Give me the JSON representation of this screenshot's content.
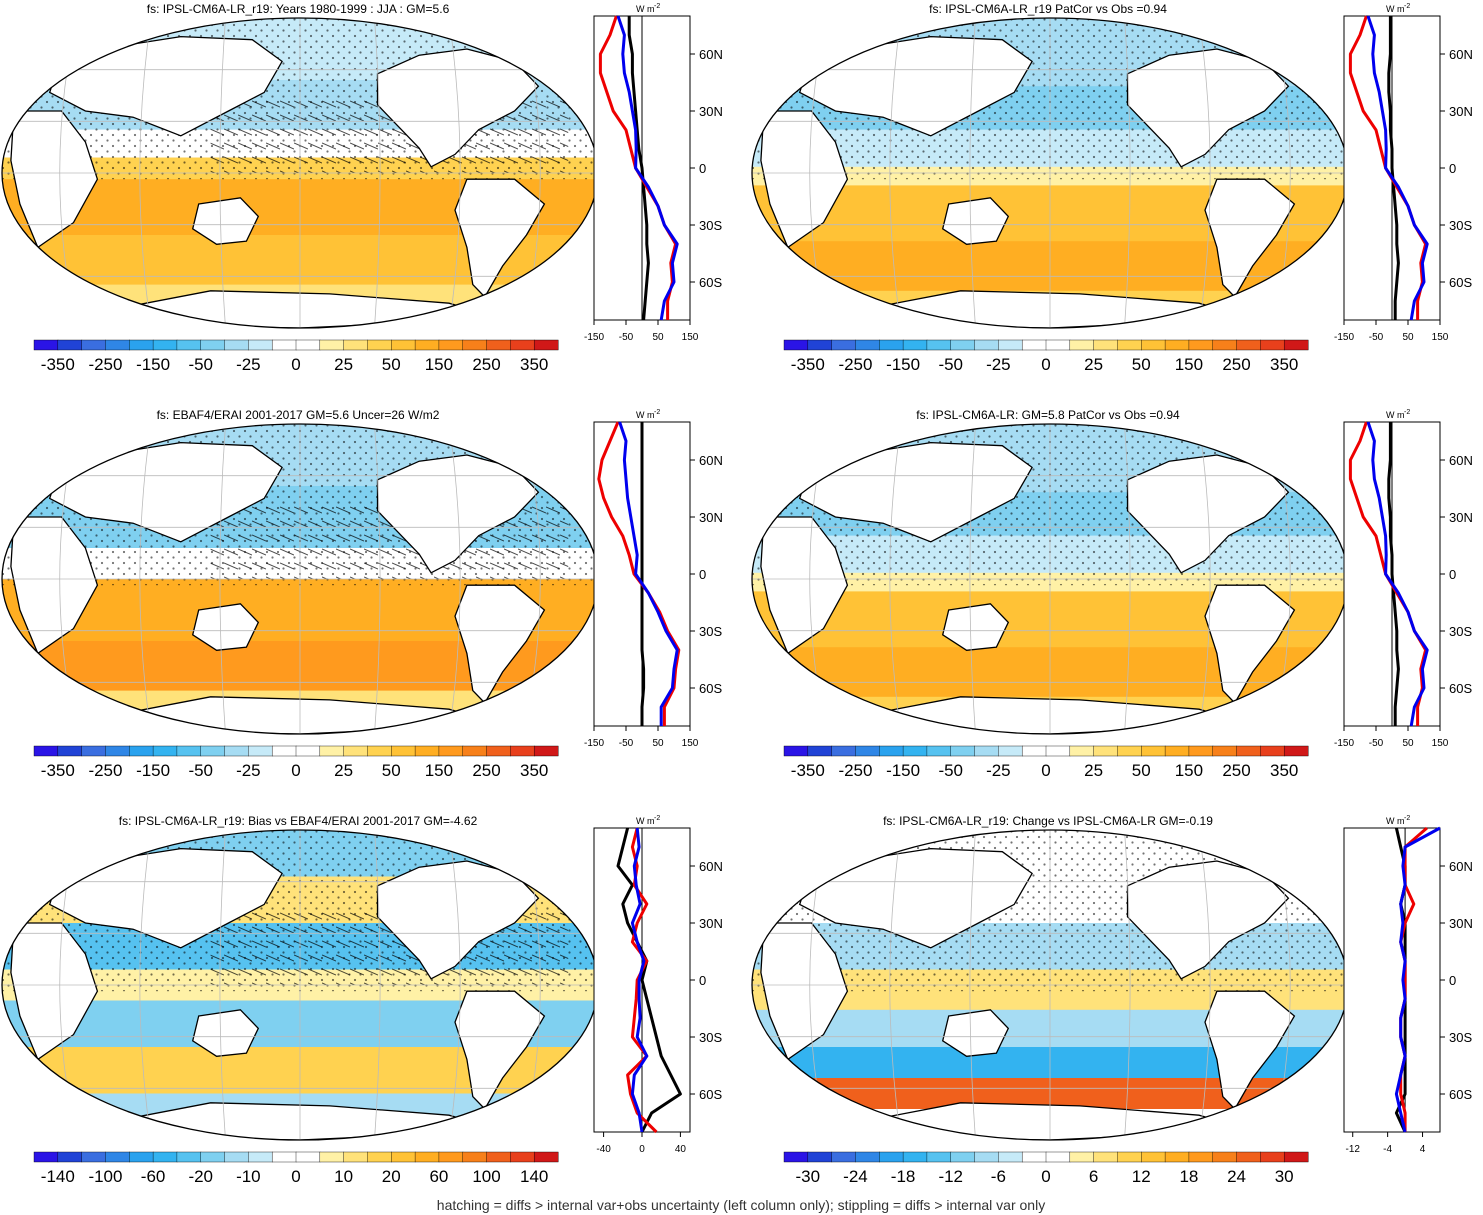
{
  "figure": {
    "footnote": "hatching = diffs > internal var+obs uncertainty (left column only); stippling = diffs > internal var only",
    "zonal_units_w": "W",
    "zonal_units_m": "m",
    "zonal_units_exp": "-2",
    "colors": {
      "land": "#ffffff",
      "zero_line": "#000000",
      "model_line": "#000000",
      "obs_line": "#0000ee",
      "change_line": "#ee0000"
    }
  },
  "chart_data": [
    {
      "type": "heatmap",
      "title": "fs: IPSL-CM6A-LR_r19: Years 1980-1999 : JJA : GM=5.6",
      "colorbar_labels": [
        "-350",
        "-250",
        "-150",
        "-50",
        "-25",
        "0",
        "25",
        "50",
        "150",
        "250",
        "350"
      ],
      "zonal": {
        "xticks": [
          "-150",
          "-50",
          "50",
          "150"
        ],
        "xlim": [
          -150,
          150
        ],
        "ylabels": [
          "60N",
          "30N",
          "0",
          "30S",
          "60S"
        ],
        "lat": [
          80,
          70,
          60,
          50,
          40,
          30,
          20,
          10,
          0,
          -10,
          -20,
          -30,
          -40,
          -50,
          -60,
          -70,
          -80
        ],
        "series": [
          {
            "values": [
              -75,
              -55,
              -60,
              -55,
              -40,
              -30,
              -20,
              -18,
              -20,
              20,
              50,
              70,
              110,
              95,
              100,
              70,
              60
            ]
          },
          {
            "values": [
              -80,
              -100,
              -130,
              -130,
              -110,
              -90,
              -50,
              -35,
              -20,
              15,
              50,
              70,
              105,
              90,
              95,
              80,
              80
            ]
          },
          {
            "values": [
              -40,
              -40,
              -30,
              -30,
              -25,
              -20,
              -15,
              -10,
              0,
              5,
              10,
              15,
              15,
              20,
              15,
              10,
              5
            ]
          }
        ]
      }
    },
    {
      "type": "heatmap",
      "title": "fs: IPSL-CM6A-LR_r19 PatCor vs Obs =0.94",
      "colorbar_labels": [
        "-350",
        "-250",
        "-150",
        "-50",
        "-25",
        "0",
        "25",
        "50",
        "150",
        "250",
        "350"
      ],
      "zonal": {
        "xticks": [
          "-150",
          "-50",
          "50",
          "150"
        ],
        "xlim": [
          -150,
          150
        ],
        "ylabels": [
          "60N",
          "30N",
          "0",
          "30S",
          "60S"
        ],
        "lat": [
          80,
          70,
          60,
          50,
          40,
          30,
          20,
          10,
          0,
          -10,
          -20,
          -30,
          -40,
          -50,
          -60,
          -70,
          -80
        ],
        "series": [
          {
            "values": [
              -75,
              -55,
              -60,
              -55,
              -40,
              -30,
              -20,
              -18,
              -20,
              20,
              50,
              70,
              110,
              95,
              100,
              70,
              60
            ]
          },
          {
            "values": [
              -80,
              -100,
              -130,
              -130,
              -110,
              -90,
              -50,
              -35,
              -20,
              15,
              50,
              70,
              105,
              90,
              95,
              80,
              80
            ]
          },
          {
            "values": [
              -5,
              -5,
              -5,
              -10,
              -10,
              -5,
              -5,
              0,
              0,
              5,
              10,
              15,
              15,
              20,
              15,
              10,
              10
            ]
          }
        ]
      }
    },
    {
      "type": "heatmap",
      "title": "fs: EBAF4/ERAI 2001-2017 GM=5.6 Uncer=26 W/m2",
      "colorbar_labels": [
        "-350",
        "-250",
        "-150",
        "-50",
        "-25",
        "0",
        "25",
        "50",
        "150",
        "250",
        "350"
      ],
      "zonal": {
        "xticks": [
          "-150",
          "-50",
          "50",
          "150"
        ],
        "xlim": [
          -150,
          150
        ],
        "ylabels": [
          "60N",
          "30N",
          "0",
          "30S",
          "60S"
        ],
        "lat": [
          80,
          70,
          60,
          50,
          40,
          30,
          20,
          10,
          0,
          -10,
          -20,
          -30,
          -40,
          -50,
          -60,
          -70,
          -80
        ],
        "series": [
          {
            "values": [
              -70,
              -50,
              -55,
              -50,
              -45,
              -35,
              -25,
              -15,
              -20,
              20,
              50,
              75,
              110,
              100,
              95,
              60,
              60
            ]
          },
          {
            "values": [
              -75,
              -100,
              -125,
              -135,
              -120,
              -95,
              -60,
              -40,
              -25,
              20,
              55,
              80,
              115,
              105,
              100,
              70,
              70
            ]
          },
          {
            "values": [
              0,
              0,
              0,
              0,
              0,
              0,
              0,
              0,
              0,
              0,
              0,
              0,
              0,
              5,
              5,
              0,
              0
            ]
          }
        ]
      }
    },
    {
      "type": "heatmap",
      "title": "fs: IPSL-CM6A-LR: GM=5.8 PatCor vs Obs =0.94",
      "colorbar_labels": [
        "-350",
        "-250",
        "-150",
        "-50",
        "-25",
        "0",
        "25",
        "50",
        "150",
        "250",
        "350"
      ],
      "zonal": {
        "xticks": [
          "-150",
          "-50",
          "50",
          "150"
        ],
        "xlim": [
          -150,
          150
        ],
        "ylabels": [
          "60N",
          "30N",
          "0",
          "30S",
          "60S"
        ],
        "lat": [
          80,
          70,
          60,
          50,
          40,
          30,
          20,
          10,
          0,
          -10,
          -20,
          -30,
          -40,
          -50,
          -60,
          -70,
          -80
        ],
        "series": [
          {
            "values": [
              -75,
              -55,
              -60,
              -55,
              -40,
              -30,
              -20,
              -18,
              -20,
              20,
              50,
              70,
              110,
              95,
              100,
              70,
              60
            ]
          },
          {
            "values": [
              -80,
              -100,
              -130,
              -130,
              -110,
              -90,
              -50,
              -35,
              -20,
              15,
              50,
              70,
              105,
              90,
              95,
              80,
              80
            ]
          },
          {
            "values": [
              -5,
              -5,
              -5,
              -10,
              -10,
              -5,
              -5,
              0,
              0,
              5,
              10,
              15,
              15,
              20,
              15,
              10,
              10
            ]
          }
        ]
      }
    },
    {
      "type": "heatmap",
      "title": "fs: IPSL-CM6A-LR_r19: Bias vs EBAF4/ERAI 2001-2017 GM=-4.62",
      "colorbar_labels": [
        "-140",
        "-100",
        "-60",
        "-20",
        "-10",
        "0",
        "10",
        "20",
        "60",
        "100",
        "140"
      ],
      "zonal": {
        "xticks": [
          "-40",
          "0",
          "40"
        ],
        "xlim": [
          -50,
          50
        ],
        "ylabels": [
          "60N",
          "30N",
          "0",
          "30S",
          "60S"
        ],
        "lat": [
          80,
          70,
          60,
          50,
          40,
          30,
          20,
          10,
          0,
          -10,
          -20,
          -30,
          -40,
          -50,
          -60,
          -70,
          -80
        ],
        "series": [
          {
            "values": [
              -5,
              -3,
              -8,
              -6,
              -2,
              -10,
              -5,
              2,
              -3,
              -3,
              -2,
              -5,
              5,
              -8,
              -10,
              -3,
              0
            ]
          },
          {
            "values": [
              -5,
              -10,
              -5,
              -8,
              5,
              -5,
              -10,
              5,
              -5,
              -6,
              -8,
              -10,
              5,
              -15,
              -12,
              -5,
              15
            ]
          },
          {
            "values": [
              -15,
              -20,
              -25,
              -10,
              -20,
              -15,
              -5,
              5,
              0,
              5,
              10,
              15,
              20,
              30,
              40,
              10,
              0
            ]
          }
        ]
      }
    },
    {
      "type": "heatmap",
      "title": "fs: IPSL-CM6A-LR_r19: Change vs IPSL-CM6A-LR GM=-0.19",
      "colorbar_labels": [
        "-30",
        "-24",
        "-18",
        "-12",
        "-6",
        "0",
        "6",
        "12",
        "18",
        "24",
        "30"
      ],
      "zonal": {
        "xticks": [
          "-12",
          "-4",
          "4"
        ],
        "xlim": [
          -14,
          8
        ],
        "ylabels": [
          "60N",
          "30N",
          "0",
          "30S",
          "60S"
        ],
        "lat": [
          80,
          70,
          60,
          50,
          40,
          30,
          20,
          10,
          0,
          -10,
          -20,
          -30,
          -40,
          -50,
          -60,
          -70,
          -80
        ],
        "series": [
          {
            "values": [
              8,
              0,
              -0.5,
              0,
              -1,
              -0.5,
              -1,
              0,
              -0.5,
              0,
              -1,
              -1,
              0,
              -1,
              -2,
              -1,
              0
            ]
          },
          {
            "values": [
              5,
              0,
              0,
              0,
              2,
              0,
              -1,
              0,
              0,
              0,
              -1,
              -1,
              0,
              -1,
              -1,
              0,
              0
            ]
          },
          {
            "values": [
              -2,
              -1,
              0,
              0,
              -1,
              0,
              0,
              0,
              0,
              0,
              0,
              0,
              0,
              0,
              0,
              -2,
              0
            ]
          }
        ]
      }
    }
  ]
}
